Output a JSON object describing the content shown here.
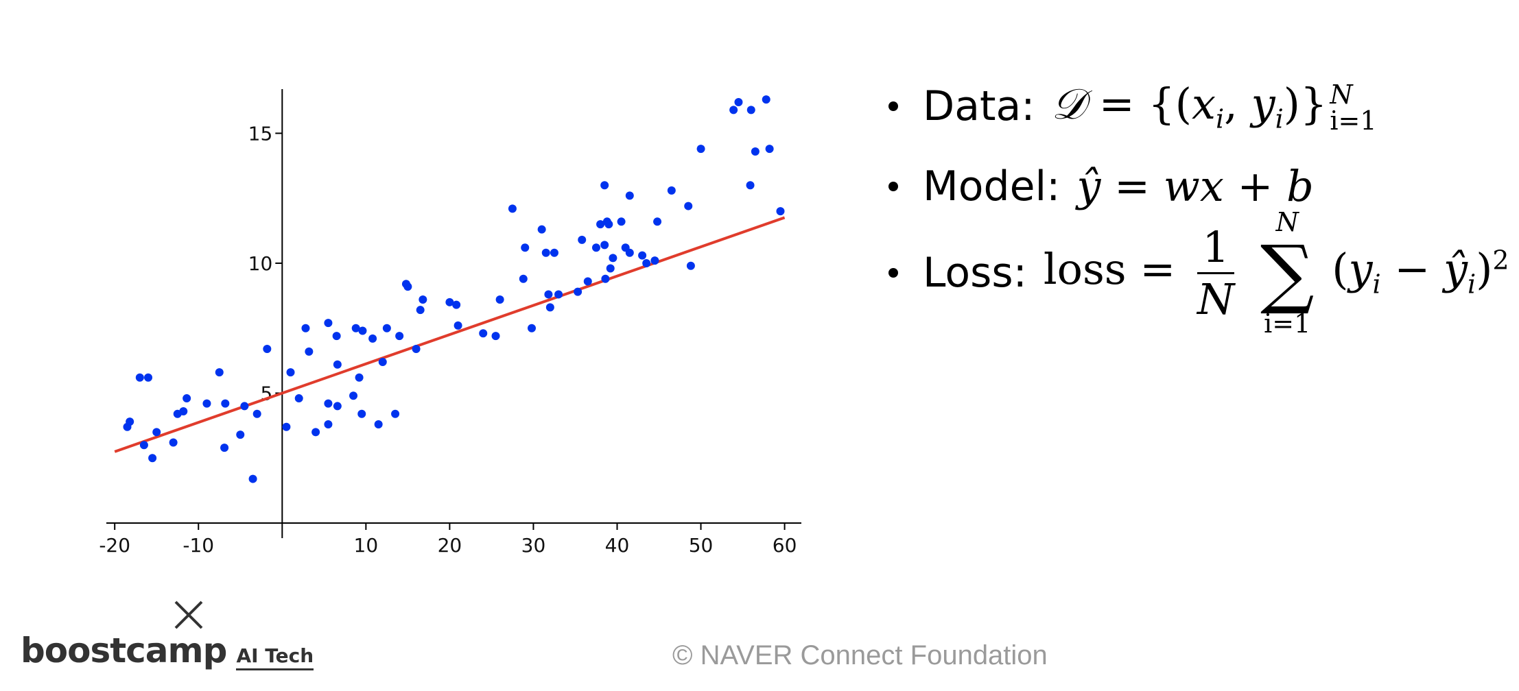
{
  "chart_data": {
    "type": "scatter",
    "title": "",
    "xlabel": "",
    "ylabel": "",
    "xlim": [
      -21,
      62
    ],
    "ylim": [
      0,
      16.7
    ],
    "x_ticks": [
      -20,
      -10,
      10,
      20,
      30,
      40,
      50,
      60
    ],
    "y_ticks": [
      5,
      10,
      15
    ],
    "grid": false,
    "points": [
      [
        -18.5,
        3.7
      ],
      [
        -18.2,
        3.9
      ],
      [
        -17.0,
        5.6
      ],
      [
        -16.5,
        3.0
      ],
      [
        -16.0,
        5.6
      ],
      [
        -15.5,
        2.5
      ],
      [
        -15.0,
        3.5
      ],
      [
        -13.0,
        3.1
      ],
      [
        -12.5,
        4.2
      ],
      [
        -11.8,
        4.3
      ],
      [
        -11.4,
        4.8
      ],
      [
        -9.0,
        4.6
      ],
      [
        -7.5,
        5.8
      ],
      [
        -6.9,
        2.9
      ],
      [
        -6.8,
        4.6
      ],
      [
        -5.0,
        3.4
      ],
      [
        -4.5,
        4.5
      ],
      [
        -3.5,
        1.7
      ],
      [
        -3.0,
        4.2
      ],
      [
        -1.8,
        6.7
      ],
      [
        0.5,
        3.7
      ],
      [
        1.0,
        5.8
      ],
      [
        2.0,
        4.8
      ],
      [
        2.8,
        7.5
      ],
      [
        3.2,
        6.6
      ],
      [
        4.0,
        3.5
      ],
      [
        5.5,
        3.8
      ],
      [
        5.5,
        7.7
      ],
      [
        5.5,
        4.6
      ],
      [
        6.5,
        7.2
      ],
      [
        6.6,
        6.1
      ],
      [
        6.6,
        4.5
      ],
      [
        8.5,
        4.9
      ],
      [
        8.8,
        7.5
      ],
      [
        9.2,
        5.6
      ],
      [
        9.5,
        4.2
      ],
      [
        9.6,
        7.4
      ],
      [
        10.8,
        7.1
      ],
      [
        11.5,
        3.8
      ],
      [
        12.0,
        6.2
      ],
      [
        12.5,
        7.5
      ],
      [
        13.5,
        4.2
      ],
      [
        14.0,
        7.2
      ],
      [
        14.8,
        9.2
      ],
      [
        15.0,
        9.1
      ],
      [
        16.0,
        6.7
      ],
      [
        16.5,
        8.2
      ],
      [
        16.8,
        8.6
      ],
      [
        20.0,
        8.5
      ],
      [
        20.8,
        8.4
      ],
      [
        21.0,
        7.6
      ],
      [
        24.0,
        7.3
      ],
      [
        25.5,
        7.2
      ],
      [
        26.0,
        8.6
      ],
      [
        27.5,
        12.1
      ],
      [
        28.8,
        9.4
      ],
      [
        29.0,
        10.6
      ],
      [
        29.8,
        7.5
      ],
      [
        31.0,
        11.3
      ],
      [
        31.5,
        10.4
      ],
      [
        31.8,
        8.8
      ],
      [
        32.0,
        8.3
      ],
      [
        32.5,
        10.4
      ],
      [
        33.0,
        8.8
      ],
      [
        35.3,
        8.9
      ],
      [
        35.8,
        10.9
      ],
      [
        36.5,
        9.3
      ],
      [
        37.5,
        10.6
      ],
      [
        38.0,
        11.5
      ],
      [
        38.5,
        10.7
      ],
      [
        38.5,
        13.0
      ],
      [
        38.6,
        9.4
      ],
      [
        38.8,
        11.6
      ],
      [
        39.0,
        11.5
      ],
      [
        39.2,
        9.8
      ],
      [
        39.5,
        10.2
      ],
      [
        40.5,
        11.6
      ],
      [
        41.0,
        10.6
      ],
      [
        41.5,
        10.4
      ],
      [
        41.5,
        12.6
      ],
      [
        43.0,
        10.3
      ],
      [
        43.5,
        10.0
      ],
      [
        44.5,
        10.1
      ],
      [
        44.8,
        11.6
      ],
      [
        46.5,
        12.8
      ],
      [
        48.5,
        12.2
      ],
      [
        48.8,
        9.9
      ],
      [
        50.0,
        14.4
      ],
      [
        53.9,
        15.9
      ],
      [
        54.5,
        16.2
      ],
      [
        55.9,
        13.0
      ],
      [
        56.0,
        15.9
      ],
      [
        56.5,
        14.3
      ],
      [
        57.8,
        16.3
      ],
      [
        58.2,
        14.4
      ],
      [
        59.5,
        12.0
      ]
    ],
    "fit_line": {
      "slope": 0.1126,
      "intercept": 5.0,
      "x_range": [
        -20,
        60
      ]
    },
    "colors": {
      "points": "#0033ee",
      "line": "#e03c2c",
      "axis": "#000000"
    }
  },
  "bullets": {
    "data": {
      "label": "Data:",
      "lhs": "𝒟",
      "eq": "=",
      "open": "{(",
      "x": "x",
      "i1": "i",
      "comma": ",",
      "y": "y",
      "i2": "i",
      "close": ")}",
      "sup": "N",
      "sub": "i=1"
    },
    "model": {
      "label": "Model:",
      "expr": "ŷ = wx + b"
    },
    "loss": {
      "label": "Loss:",
      "lhs": "loss",
      "eq": "=",
      "frac_num": "1",
      "frac_den": "N",
      "sum_op": "∑",
      "sum_top": "N",
      "sum_bot": "i=1",
      "open": "(",
      "y": "y",
      "i1": "i",
      "minus": "−",
      "yhat": "ŷ",
      "i2": "i",
      "close": ")",
      "pow": "2"
    }
  },
  "footer": {
    "logo_main": "boostcamp",
    "logo_sub": "AI Tech",
    "copyright": "©  NAVER Connect Foundation",
    "logo_icon": "cross-icon"
  }
}
